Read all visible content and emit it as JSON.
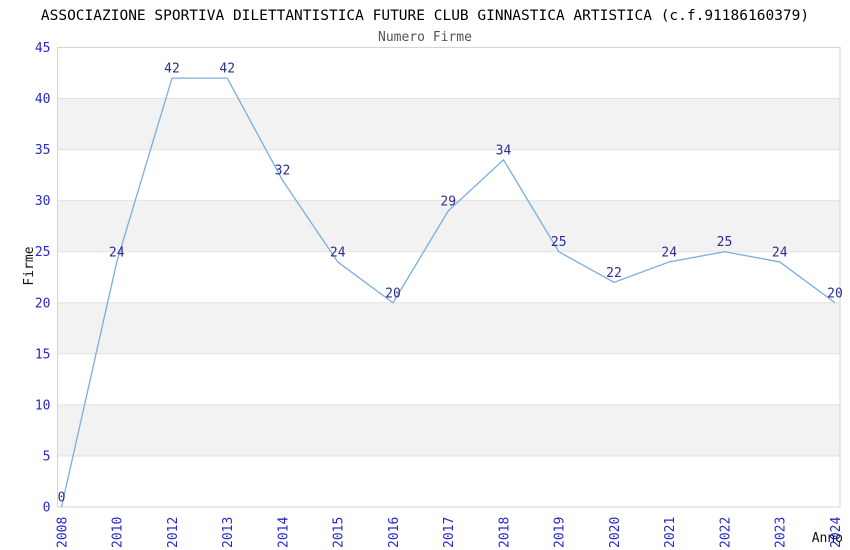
{
  "chart_data": {
    "type": "line",
    "title": "ASSOCIAZIONE SPORTIVA DILETTANTISTICA FUTURE CLUB GINNASTICA ARTISTICA (c.f.91186160379)",
    "subtitle": "Numero Firme",
    "xlabel": "Anno",
    "ylabel": "Firme",
    "categories": [
      "2008",
      "2010",
      "2012",
      "2013",
      "2014",
      "2015",
      "2016",
      "2017",
      "2018",
      "2019",
      "2020",
      "2021",
      "2022",
      "2023",
      "2024"
    ],
    "values": [
      0,
      24,
      42,
      42,
      32,
      24,
      20,
      29,
      34,
      25,
      22,
      24,
      25,
      24,
      20
    ],
    "data_labels_shown": true,
    "ylim": [
      0,
      45
    ],
    "ytick_step": 5,
    "yticks": [
      0,
      5,
      10,
      15,
      20,
      25,
      30,
      35,
      40,
      45
    ],
    "grid": "horizontal-gridlines-with-alternating-bands",
    "legend": "none",
    "colors": {
      "line": "#7aaede",
      "data_label": "#2e2e8f",
      "tick_label": "#2727cc",
      "subtitle": "#555555",
      "band": "#f2f2f2",
      "gridline": "#e2e2e2",
      "border": "#d5d5d5"
    }
  }
}
